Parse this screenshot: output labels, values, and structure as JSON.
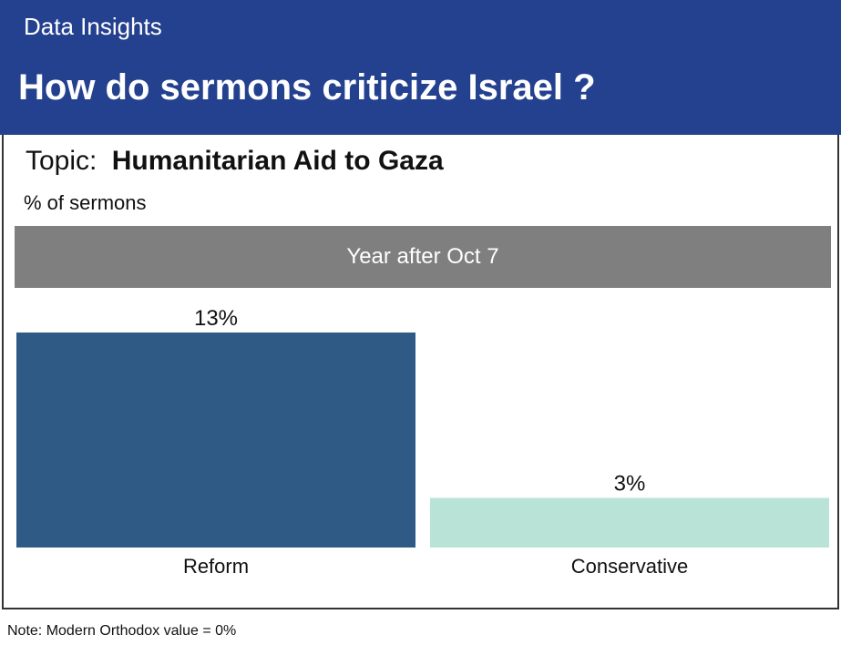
{
  "header": {
    "kicker": "Data Insights",
    "title": "How do sermons criticize Israel ?"
  },
  "panel": {
    "topic_prefix": "Topic:",
    "topic_name": "Humanitarian Aid to Gaza",
    "unit": "% of sermons",
    "facet": "Year after Oct 7"
  },
  "note": "Note: Modern Orthodox value = 0%",
  "colors": {
    "header_bg": "#24418f",
    "facet_bg": "#7f7f7f",
    "reform": "#2e5a85",
    "conservative": "#b8e3d6"
  },
  "chart_data": {
    "type": "bar",
    "categories": [
      "Reform",
      "Conservative"
    ],
    "values": [
      13,
      3
    ],
    "value_labels": [
      "13%",
      "3%"
    ],
    "colors": [
      "#2e5a85",
      "#b8e3d6"
    ],
    "title": "Humanitarian Aid to Gaza",
    "ylabel": "% of sermons",
    "facet": "Year after Oct 7",
    "ylim": [
      0,
      13
    ],
    "grid": false
  }
}
